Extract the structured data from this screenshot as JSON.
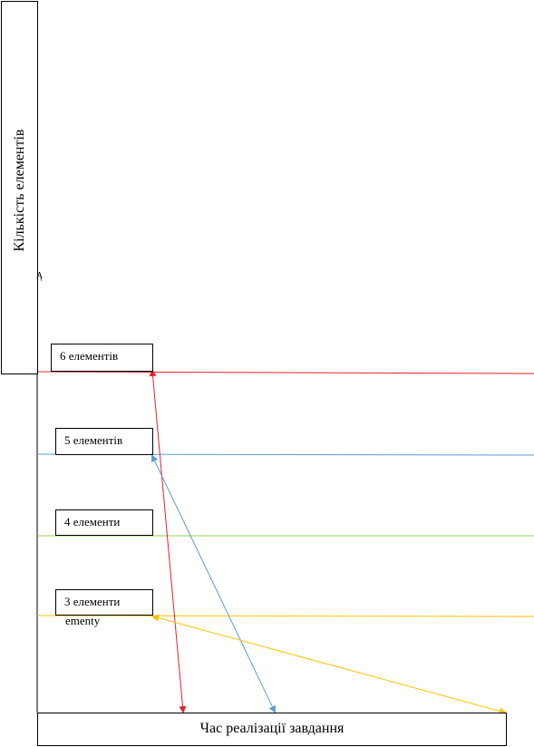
{
  "y_axis_label": "Кількість елементів",
  "x_axis_label": "Час реалізації завдання",
  "levels": [
    {
      "label": "6 елементів",
      "color": "#e3222a"
    },
    {
      "label": "5 елементів",
      "color": "#5b9bd5"
    },
    {
      "label": "4 елементи",
      "color": "#92d050"
    },
    {
      "label": "3 елементи",
      "color": "#ffc000"
    }
  ],
  "stray_text": "ementy",
  "stray_mark": "Ą"
}
